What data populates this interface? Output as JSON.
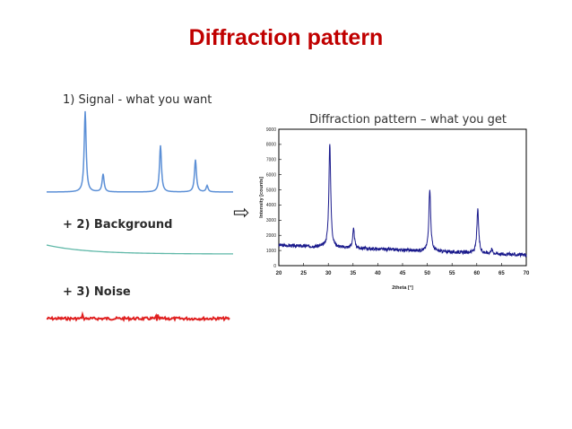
{
  "title": "Diffraction pattern",
  "panels": {
    "signal_label": "1) Signal - what you want",
    "background_label": "+ 2) Background",
    "noise_label": "+ 3) Noise"
  },
  "arrow_symbol": "⇨",
  "colors": {
    "title": "#c00000",
    "signal": "#5b8fd6",
    "background": "#5fb8a8",
    "noise": "#e02020",
    "pattern": "#1a1a8c"
  },
  "chart_data": {
    "type": "line",
    "title": "Diffraction pattern – what you get",
    "xlabel": "2theta [°]",
    "ylabel": "Intensity [counts]",
    "xlim": [
      20,
      70
    ],
    "ylim": [
      0,
      9000
    ],
    "x_ticks": [
      20,
      25,
      30,
      35,
      40,
      45,
      50,
      55,
      60,
      65,
      70
    ],
    "y_ticks": [
      0,
      1000,
      2000,
      3000,
      4000,
      5000,
      6000,
      7000,
      8000,
      9000
    ],
    "baseline": {
      "start": 1350,
      "end": 700
    },
    "peaks": [
      {
        "x": 30.3,
        "y": 8100
      },
      {
        "x": 35.1,
        "y": 2400
      },
      {
        "x": 50.5,
        "y": 5100
      },
      {
        "x": 60.2,
        "y": 3700
      },
      {
        "x": 63.0,
        "y": 1100
      }
    ]
  }
}
